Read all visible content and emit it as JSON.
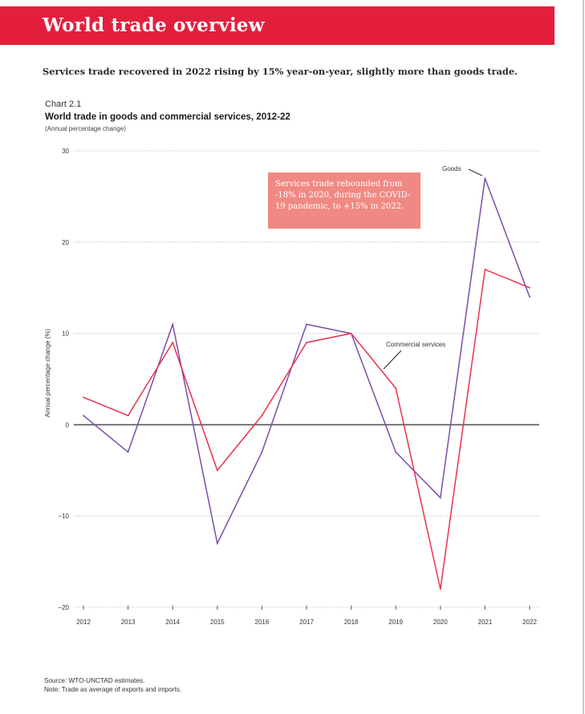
{
  "header": {
    "title": "World trade overview"
  },
  "lead_text": "Services trade recovered in 2022 rising by 15% year-on-year, slightly more than goods trade.",
  "chart_label": "Chart 2.1",
  "annotation": "Services trade rebounded from -18% in 2020, during the COVID-19 pandemic, to +15% in 2022.",
  "colors": {
    "header": "#e31f3d",
    "goods": "#7b4ea8",
    "services": "#e8324f",
    "annotation_bg": "#f08983"
  },
  "footer": {
    "source": "Source: WTO-UNCTAD estimates.",
    "note": "Note: Trade as average of exports and imports."
  },
  "chart_data": {
    "type": "line",
    "title": "World trade in goods and commercial services, 2012-22",
    "subtitle": "(Annual percentage change)",
    "xlabel": "",
    "ylabel": "Annual percentage change (%)",
    "ylim": [
      -20,
      30
    ],
    "yticks": [
      30,
      20,
      10,
      0,
      -10,
      -20
    ],
    "ytick_labels": [
      "30",
      "20",
      "10",
      "0",
      "−10",
      "−20"
    ],
    "grid": true,
    "categories": [
      "2012",
      "2013",
      "2014",
      "2015",
      "2016",
      "2017",
      "2018",
      "2019",
      "2020",
      "2021",
      "2022"
    ],
    "series": [
      {
        "name": "Goods",
        "color": "#7b4ea8",
        "values": [
          1,
          -3,
          11,
          -13,
          -3,
          11,
          10,
          -3,
          -8,
          27,
          14
        ]
      },
      {
        "name": "Commercial services",
        "color": "#e8324f",
        "values": [
          3,
          1,
          9,
          -5,
          1,
          9,
          10,
          4,
          -18,
          17,
          15
        ]
      }
    ],
    "series_labels": {
      "goods": "Goods",
      "services": "Commercial services"
    }
  }
}
